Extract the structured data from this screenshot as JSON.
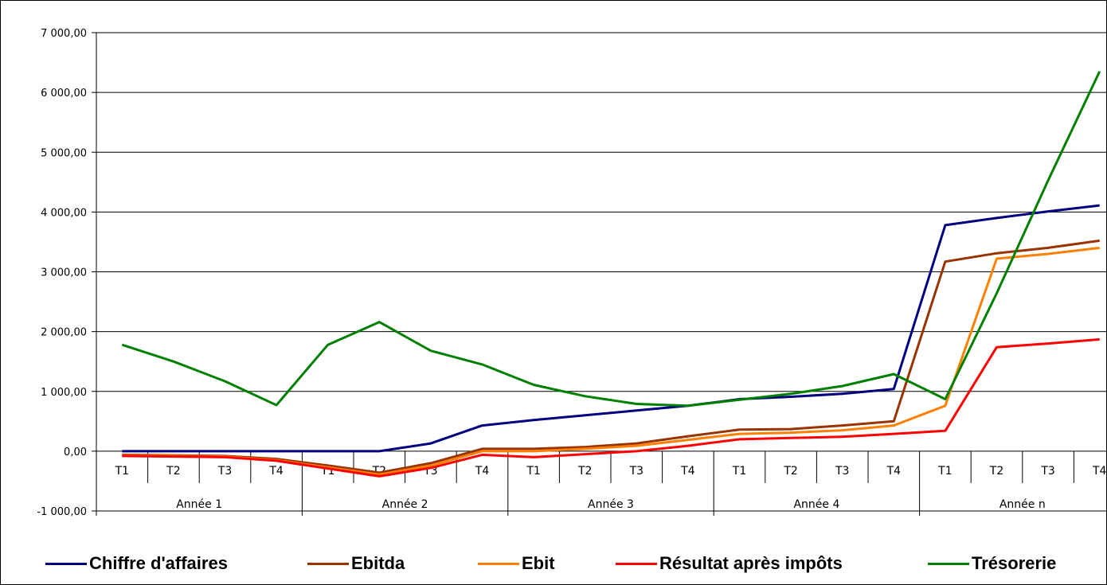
{
  "chart_data": {
    "type": "line",
    "title": "",
    "xlabel": "",
    "ylabel": "",
    "ylim": [
      -1000,
      7000
    ],
    "ytick_values": [
      -1000,
      0,
      1000,
      2000,
      3000,
      4000,
      5000,
      6000,
      7000
    ],
    "ytick_labels": [
      "-1 000,00",
      "0,00",
      "1 000,00",
      "2 000,00",
      "3 000,00",
      "4 000,00",
      "5 000,00",
      "6 000,00",
      "7 000,00"
    ],
    "grid": "horizontal",
    "legend_position": "bottom",
    "categories": [
      "T1",
      "T2",
      "T3",
      "T4",
      "T1",
      "T2",
      "T3",
      "T4",
      "T1",
      "T2",
      "T3",
      "T4",
      "T1",
      "T2",
      "T3",
      "T4",
      "T1",
      "T2",
      "T3",
      "T4"
    ],
    "groups": [
      "Année 1",
      "Année 2",
      "Année 3",
      "Année 4",
      "Année n"
    ],
    "series": [
      {
        "name": "Chiffre d'affaires",
        "color": "#000080",
        "values": [
          0,
          0,
          0,
          0,
          0,
          0,
          130,
          430,
          520,
          600,
          680,
          760,
          870,
          910,
          960,
          1040,
          3780,
          3900,
          4010,
          4110
        ]
      },
      {
        "name": "Ebitda",
        "color": "#993300",
        "values": [
          -60,
          -70,
          -80,
          -130,
          -240,
          -360,
          -200,
          40,
          40,
          70,
          130,
          250,
          360,
          370,
          430,
          500,
          3170,
          3310,
          3400,
          3520
        ]
      },
      {
        "name": "Ebit",
        "color": "#ff8000",
        "values": [
          -70,
          -80,
          -90,
          -150,
          -270,
          -390,
          -240,
          0,
          0,
          40,
          90,
          190,
          290,
          310,
          350,
          430,
          760,
          3220,
          3300,
          3400
        ]
      },
      {
        "name": "Résultat après impôts",
        "color": "#ff0000",
        "values": [
          -80,
          -90,
          -100,
          -160,
          -290,
          -420,
          -280,
          -60,
          -100,
          -50,
          0,
          90,
          200,
          220,
          240,
          290,
          340,
          1740,
          1800,
          1870
        ]
      },
      {
        "name": "Trésorerie",
        "color": "#008000",
        "values": [
          1780,
          1500,
          1170,
          770,
          1780,
          2160,
          1680,
          1450,
          1110,
          920,
          790,
          760,
          860,
          960,
          1090,
          1290,
          870,
          2640,
          4530,
          6350
        ]
      }
    ]
  }
}
